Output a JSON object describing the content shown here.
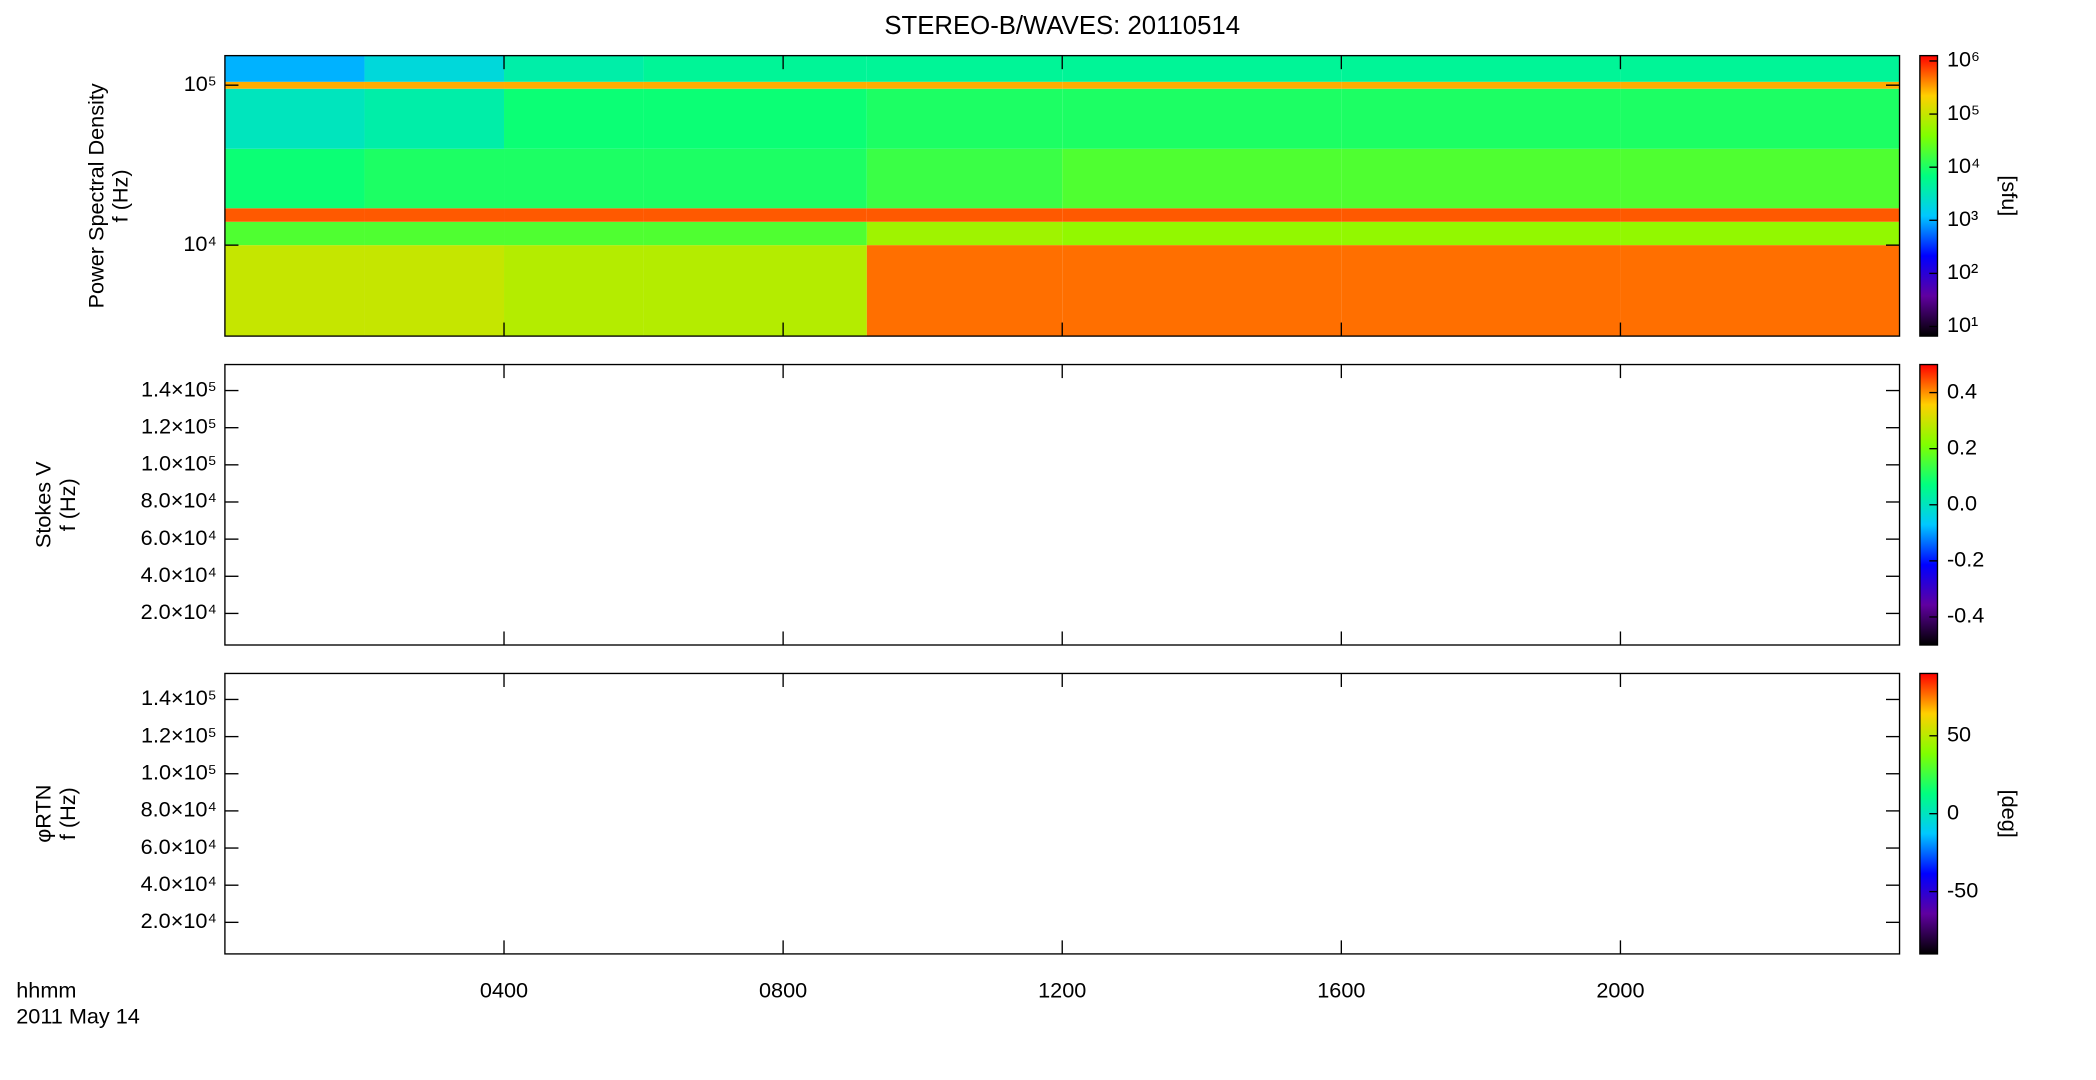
{
  "chart_data": [
    {
      "type": "heatmap",
      "title": "STEREO-B/WAVES: 20110514",
      "ylabel": [
        "Power Spectral Density",
        "f (Hz)"
      ],
      "xlim": [
        0,
        24
      ],
      "ylim": [
        2700,
        153000
      ],
      "log": true,
      "yticks": [
        {
          "value": 10000,
          "label": "10⁴"
        },
        {
          "value": 100000,
          "label": "10⁵"
        }
      ],
      "x": [
        0,
        2,
        4,
        6,
        9.2,
        12,
        16,
        20,
        24
      ],
      "y": [
        2700,
        10000,
        14000,
        17000,
        40000,
        95000,
        105000,
        153000
      ],
      "z": [
        [
          100000,
          100000,
          80000,
          80000,
          500000,
          500000,
          500000,
          500000
        ],
        [
          20000,
          20000,
          20000,
          20000,
          60000,
          50000,
          50000,
          50000
        ],
        [
          600000,
          600000,
          600000,
          600000,
          600000,
          600000,
          600000,
          600000
        ],
        [
          8000,
          10000,
          10000,
          10000,
          15000,
          20000,
          20000,
          20000
        ],
        [
          3000,
          4000,
          8000,
          8000,
          10000,
          10000,
          10000,
          10000
        ],
        [
          300000,
          300000,
          300000,
          300000,
          300000,
          300000,
          300000,
          300000
        ],
        [
          1000,
          2000,
          4000,
          5000,
          5000,
          5000,
          5000,
          5000
        ]
      ],
      "colorbar": {
        "clim": [
          6.6,
          1260000
        ],
        "log": true,
        "label": "[sfu]",
        "colors": [
          "#000000",
          "#6000a0",
          "#0000ff",
          "#00c8ff",
          "#00ff80",
          "#80ff00",
          "#ffd000",
          "#ff0000"
        ],
        "ticks": [
          {
            "value": 10,
            "label": "10¹"
          },
          {
            "value": 100,
            "label": "10²"
          },
          {
            "value": 1000,
            "label": "10³"
          },
          {
            "value": 10000,
            "label": "10⁴"
          },
          {
            "value": 100000,
            "label": "10⁵"
          },
          {
            "value": 1000000,
            "label": "10⁶"
          }
        ]
      }
    },
    {
      "type": "heatmap",
      "ylabel": [
        "Stokes V",
        "f (Hz)"
      ],
      "xlim": [
        0,
        24
      ],
      "ylim": [
        3000,
        154000
      ],
      "log": false,
      "yticks": [
        {
          "value": 20000,
          "label": "2.0×10⁴"
        },
        {
          "value": 40000,
          "label": "4.0×10⁴"
        },
        {
          "value": 60000,
          "label": "6.0×10⁴"
        },
        {
          "value": 80000,
          "label": "8.0×10⁴"
        },
        {
          "value": 100000,
          "label": "1.0×10⁵"
        },
        {
          "value": 120000,
          "label": "1.2×10⁵"
        },
        {
          "value": 140000,
          "label": "1.4×10⁵"
        }
      ],
      "colorbar": {
        "clim": [
          -0.5,
          0.5
        ],
        "log": false,
        "colors": [
          "#000000",
          "#6000a0",
          "#0000ff",
          "#00c8ff",
          "#00ff80",
          "#80ff00",
          "#ffd000",
          "#ff0000"
        ],
        "ticks": [
          -0.4,
          -0.2,
          {
            "value": 0,
            "label": "0.0"
          },
          0.2,
          0.4
        ]
      }
    },
    {
      "type": "heatmap",
      "ylabel": [
        "φRTN",
        "f (Hz)"
      ],
      "xlim": [
        0,
        24
      ],
      "ylim": [
        3000,
        154000
      ],
      "log": false,
      "yticks": [
        {
          "value": 20000,
          "label": "2.0×10⁴"
        },
        {
          "value": 40000,
          "label": "4.0×10⁴"
        },
        {
          "value": 60000,
          "label": "6.0×10⁴"
        },
        {
          "value": 80000,
          "label": "8.0×10⁴"
        },
        {
          "value": 100000,
          "label": "1.0×10⁵"
        },
        {
          "value": 120000,
          "label": "1.2×10⁵"
        },
        {
          "value": 140000,
          "label": "1.4×10⁵"
        }
      ],
      "xlabel": "hhmm",
      "date": "2011 May 14",
      "xticks": [
        {
          "value": 4,
          "label": "0400"
        },
        {
          "value": 8,
          "label": "0800"
        },
        {
          "value": 12,
          "label": "1200"
        },
        {
          "value": 16,
          "label": "1600"
        },
        {
          "value": 20,
          "label": "2000"
        }
      ],
      "colorbar": {
        "clim": [
          -90,
          90
        ],
        "log": false,
        "label": "[deg]",
        "colors": [
          "#000000",
          "#6000a0",
          "#0000ff",
          "#00c8ff",
          "#00ff80",
          "#80ff00",
          "#ffd000",
          "#ff0000"
        ],
        "ticks": [
          -50,
          0,
          50
        ]
      }
    }
  ]
}
